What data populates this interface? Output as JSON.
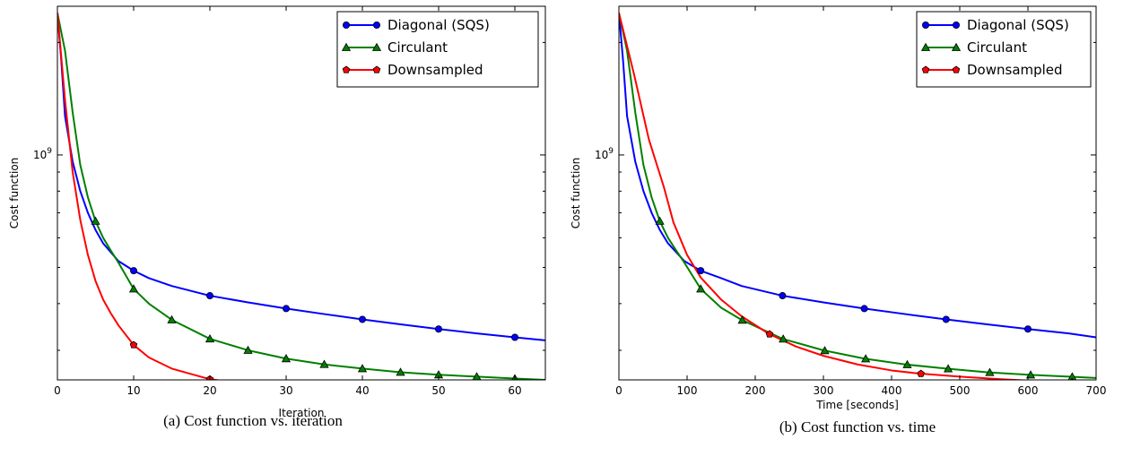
{
  "chart_data": [
    {
      "type": "line",
      "caption": "(a) Cost function vs. iteration",
      "xlabel": "Iteration",
      "ylabel": "Cost function",
      "xlim": [
        0,
        64
      ],
      "yscale": "log",
      "ylim": [
        250000000,
        2500000000
      ],
      "xticks": [
        0,
        10,
        20,
        30,
        40,
        50,
        60
      ],
      "xtick_labels": [
        "0",
        "10",
        "20",
        "30",
        "40",
        "50",
        "60"
      ],
      "yticks": [
        1000000000
      ],
      "ytick_labels": [
        "10",
        "9"
      ],
      "legend_position": "top-right",
      "series": [
        {
          "name": "Diagonal (SQS)",
          "color": "#0000ff",
          "marker": "circle",
          "x": [
            0,
            0.5,
            1,
            2,
            3,
            4,
            5,
            6,
            8,
            10,
            12,
            15,
            20,
            25,
            30,
            35,
            40,
            45,
            50,
            55,
            60,
            64
          ],
          "y": [
            2400000000,
            1800000000,
            1270000000,
            960000000,
            800000000,
            700000000,
            630000000,
            580000000,
            520000000,
            490000000,
            468000000,
            446000000,
            420000000,
            403000000,
            388000000,
            375000000,
            363000000,
            352000000,
            342000000,
            333000000,
            325000000,
            319000000
          ],
          "markers_x": [
            10,
            20,
            30,
            40,
            50,
            60
          ]
        },
        {
          "name": "Circulant",
          "color": "#008000",
          "marker": "triangle",
          "x": [
            0,
            1,
            2,
            3,
            4,
            5,
            6,
            7,
            8,
            10,
            12,
            15,
            20,
            25,
            30,
            35,
            40,
            45,
            50,
            55,
            60,
            64
          ],
          "y": [
            2400000000,
            1900000000,
            1300000000,
            940000000,
            770000000,
            665000000,
            600000000,
            555000000,
            515000000,
            438000000,
            400000000,
            362000000,
            322000000,
            300000000,
            285000000,
            275000000,
            268000000,
            262000000,
            258000000,
            255000000,
            252000000,
            250000000
          ],
          "markers_x": [
            5,
            10,
            15,
            20,
            25,
            30,
            35,
            40,
            45,
            50,
            55,
            60
          ]
        },
        {
          "name": "Downsampled",
          "color": "#ff0000",
          "marker": "pentagon",
          "x": [
            0,
            1,
            2,
            3,
            4,
            5,
            6,
            7,
            8,
            10,
            12,
            15,
            20,
            25,
            30,
            35,
            40,
            45,
            50,
            55,
            60,
            64
          ],
          "y": [
            2400000000,
            1400000000,
            900000000,
            670000000,
            540000000,
            460000000,
            410000000,
            377000000,
            350000000,
            310000000,
            287000000,
            268000000,
            251000000,
            244000000,
            240000000,
            238500000,
            237500000,
            237000000,
            236500000,
            236200000,
            236000000,
            235800000
          ],
          "markers_x": [
            10,
            20,
            30,
            40,
            50,
            60
          ]
        }
      ]
    },
    {
      "type": "line",
      "caption": "(b) Cost function vs. time",
      "xlabel": "Time [seconds]",
      "ylabel": "Cost function",
      "xlim": [
        0,
        700
      ],
      "yscale": "log",
      "ylim": [
        250000000,
        2500000000
      ],
      "xticks": [
        0,
        100,
        200,
        300,
        400,
        500,
        600,
        700
      ],
      "xtick_labels": [
        "0",
        "100",
        "200",
        "300",
        "400",
        "500",
        "600",
        "700"
      ],
      "yticks": [
        1000000000
      ],
      "ytick_labels": [
        "10",
        "9"
      ],
      "legend_position": "top-right",
      "series": [
        {
          "name": "Diagonal (SQS)",
          "color": "#0000ff",
          "marker": "circle",
          "x": [
            0,
            6,
            12,
            24,
            36,
            48,
            60,
            72,
            96,
            120,
            150,
            180,
            240,
            300,
            360,
            420,
            480,
            540,
            600,
            660,
            700
          ],
          "y": [
            2400000000,
            1800000000,
            1270000000,
            960000000,
            800000000,
            700000000,
            630000000,
            580000000,
            520000000,
            490000000,
            468000000,
            446000000,
            420000000,
            403000000,
            388000000,
            375000000,
            363000000,
            352000000,
            342000000,
            333000000,
            325000000
          ],
          "markers_x": [
            120,
            240,
            360,
            480,
            600
          ]
        },
        {
          "name": "Circulant",
          "color": "#008000",
          "marker": "triangle",
          "x": [
            0,
            12,
            24,
            36,
            48,
            60,
            72,
            84,
            96,
            120,
            150,
            180,
            240,
            300,
            360,
            420,
            480,
            540,
            600,
            660,
            700
          ],
          "y": [
            2400000000,
            1900000000,
            1300000000,
            940000000,
            770000000,
            665000000,
            600000000,
            555000000,
            515000000,
            438000000,
            390000000,
            362000000,
            322000000,
            300000000,
            285000000,
            275000000,
            268000000,
            262000000,
            258000000,
            255000000,
            253000000
          ],
          "markers_x": [
            60,
            120,
            181,
            241,
            302,
            362,
            423,
            483,
            544,
            604,
            665
          ]
        },
        {
          "name": "Downsampled",
          "color": "#ff0000",
          "marker": "pentagon",
          "x": [
            0,
            22,
            44,
            66,
            80,
            100,
            120,
            150,
            180,
            220,
            260,
            300,
            350,
            400,
            440,
            500,
            560,
            620,
            665,
            700
          ],
          "y": [
            2400000000,
            1650000000,
            1100000000,
            820000000,
            660000000,
            540000000,
            470000000,
            410000000,
            370000000,
            332000000,
            307000000,
            290000000,
            275000000,
            265000000,
            260000000,
            255000000,
            251000000,
            248000000,
            246500000,
            245500000
          ],
          "markers_x": [
            221,
            443,
            665
          ]
        }
      ]
    }
  ]
}
